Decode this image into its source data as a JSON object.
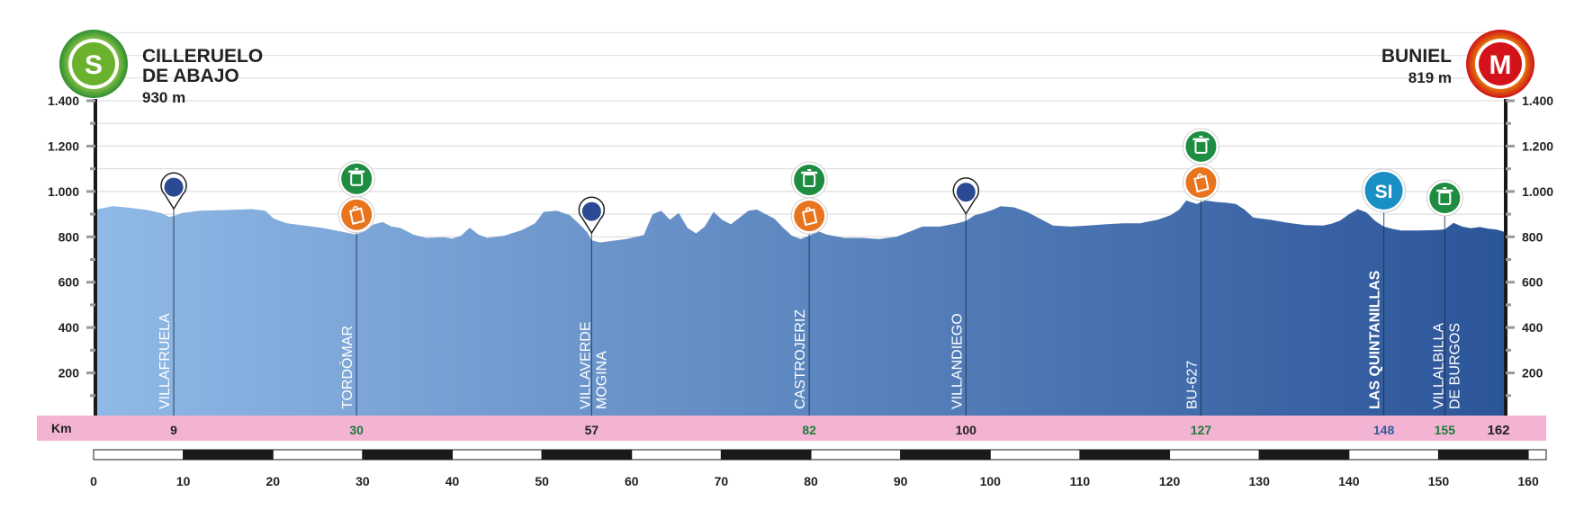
{
  "header": {
    "start": {
      "badge": "S",
      "name": "CILLERUELO\nDE ABAJO",
      "altitude": "930 m",
      "color": "#6ab22e"
    },
    "finish": {
      "badge": "M",
      "name": "BUNIEL",
      "altitude": "819 m",
      "color": "#d4121b"
    }
  },
  "chart_data": {
    "type": "area",
    "title": "",
    "xlabel": "",
    "ylabel": "",
    "xlim": [
      0,
      162
    ],
    "ylim": [
      0,
      1400
    ],
    "y_ticks": [
      200,
      400,
      600,
      800,
      1000,
      1200,
      1400
    ],
    "y_tick_labels": [
      "200",
      "400",
      "600",
      "800",
      "1.000",
      "1.200",
      "1.400"
    ],
    "x_ticks": [
      0,
      10,
      20,
      30,
      40,
      50,
      60,
      70,
      80,
      90,
      100,
      110,
      120,
      130,
      140,
      150,
      160
    ],
    "km_row_label": "Km",
    "total_km": "162",
    "fill_colors": [
      "#8fb9e6",
      "#2b5599"
    ],
    "colors": {
      "row_bg": "#f2b4d2",
      "green": "#1f7a3c",
      "blue": "#33599c",
      "dark": "#222222",
      "sprint": "#1a8fc4",
      "feed": "#e8741e",
      "waste": "#1e8c41",
      "climb": "#2c4a94"
    },
    "profile": [
      [
        0,
        920
      ],
      [
        2,
        935
      ],
      [
        4,
        928
      ],
      [
        6,
        918
      ],
      [
        7.5,
        905
      ],
      [
        8.5,
        888
      ],
      [
        9,
        892
      ],
      [
        10,
        905
      ],
      [
        12,
        915
      ],
      [
        15,
        918
      ],
      [
        18,
        922
      ],
      [
        19.5,
        915
      ],
      [
        20.5,
        880
      ],
      [
        22,
        860
      ],
      [
        24,
        850
      ],
      [
        26,
        840
      ],
      [
        28,
        825
      ],
      [
        30,
        810
      ],
      [
        31,
        830
      ],
      [
        32,
        855
      ],
      [
        33,
        865
      ],
      [
        34,
        845
      ],
      [
        35,
        840
      ],
      [
        36.5,
        810
      ],
      [
        38,
        795
      ],
      [
        40,
        798
      ],
      [
        41,
        792
      ],
      [
        42,
        805
      ],
      [
        43,
        840
      ],
      [
        44,
        810
      ],
      [
        45,
        795
      ],
      [
        47,
        805
      ],
      [
        49,
        830
      ],
      [
        50.5,
        860
      ],
      [
        51.5,
        910
      ],
      [
        53,
        915
      ],
      [
        54.5,
        895
      ],
      [
        55.5,
        860
      ],
      [
        56.5,
        820
      ],
      [
        57,
        785
      ],
      [
        58,
        775
      ],
      [
        59,
        780
      ],
      [
        61,
        790
      ],
      [
        63,
        808
      ],
      [
        64,
        900
      ],
      [
        65,
        915
      ],
      [
        66,
        875
      ],
      [
        67,
        905
      ],
      [
        68,
        840
      ],
      [
        69,
        815
      ],
      [
        70,
        845
      ],
      [
        71,
        910
      ],
      [
        72,
        875
      ],
      [
        73,
        855
      ],
      [
        74,
        885
      ],
      [
        75,
        915
      ],
      [
        76,
        920
      ],
      [
        77,
        900
      ],
      [
        78,
        880
      ],
      [
        79,
        840
      ],
      [
        80,
        805
      ],
      [
        81,
        790
      ],
      [
        82,
        805
      ],
      [
        83,
        825
      ],
      [
        84,
        810
      ],
      [
        86,
        795
      ],
      [
        88,
        795
      ],
      [
        90,
        790
      ],
      [
        92,
        800
      ],
      [
        94,
        830
      ],
      [
        95,
        845
      ],
      [
        97,
        845
      ],
      [
        99,
        860
      ],
      [
        100,
        870
      ],
      [
        101,
        895
      ],
      [
        102,
        905
      ],
      [
        103,
        918
      ],
      [
        104,
        935
      ],
      [
        105.5,
        930
      ],
      [
        107,
        910
      ],
      [
        108.5,
        880
      ],
      [
        110,
        850
      ],
      [
        112,
        845
      ],
      [
        114,
        850
      ],
      [
        116,
        855
      ],
      [
        118,
        860
      ],
      [
        120,
        860
      ],
      [
        122,
        875
      ],
      [
        123.5,
        895
      ],
      [
        124.5,
        920
      ],
      [
        125.3,
        960
      ],
      [
        126.5,
        945
      ],
      [
        127.5,
        960
      ],
      [
        128.5,
        955
      ],
      [
        130,
        950
      ],
      [
        131,
        945
      ],
      [
        132,
        920
      ],
      [
        133,
        885
      ],
      [
        135,
        875
      ],
      [
        137,
        862
      ],
      [
        139,
        852
      ],
      [
        141,
        850
      ],
      [
        142,
        858
      ],
      [
        143,
        872
      ],
      [
        144,
        900
      ],
      [
        145,
        922
      ],
      [
        146,
        908
      ],
      [
        147,
        870
      ],
      [
        148,
        845
      ],
      [
        149,
        835
      ],
      [
        150,
        828
      ],
      [
        152,
        828
      ],
      [
        154,
        830
      ],
      [
        155,
        833
      ],
      [
        156,
        862
      ],
      [
        157,
        845
      ],
      [
        158,
        838
      ],
      [
        159,
        843
      ],
      [
        160,
        836
      ],
      [
        161,
        832
      ],
      [
        162,
        820
      ]
    ],
    "towns": [
      {
        "km": 9,
        "label": "9",
        "name": "VILLAFRUELA",
        "line2": "",
        "marker": "climb",
        "bold": false,
        "label_color": "dark"
      },
      {
        "km": 30,
        "label": "30",
        "name": "TORDÓMAR",
        "line2": "",
        "marker": "feed+waste",
        "bold": false,
        "label_color": "green"
      },
      {
        "km": 57,
        "label": "57",
        "name": "VILLAVERDE",
        "line2": "MOGINA",
        "marker": "climb",
        "bold": false,
        "label_color": "dark"
      },
      {
        "km": 82,
        "label": "82",
        "name": "CASTROJERIZ",
        "line2": "",
        "marker": "feed+waste",
        "bold": false,
        "label_color": "green"
      },
      {
        "km": 100,
        "label": "100",
        "name": "VILLANDIEGO",
        "line2": "",
        "marker": "climb",
        "bold": false,
        "label_color": "dark"
      },
      {
        "km": 127,
        "label": "127",
        "name": "BU-627",
        "line2": "",
        "marker": "feed+waste",
        "bold": false,
        "label_color": "green"
      },
      {
        "km": 148,
        "label": "148",
        "name": "LAS QUINTANILLAS",
        "line2": "",
        "marker": "sprint",
        "bold": true,
        "label_color": "blue"
      },
      {
        "km": 155,
        "label": "155",
        "name": "VILLALBILLA",
        "line2": "DE BURGOS",
        "marker": "waste",
        "bold": false,
        "label_color": "green"
      }
    ],
    "sprint_badge": "SI"
  }
}
